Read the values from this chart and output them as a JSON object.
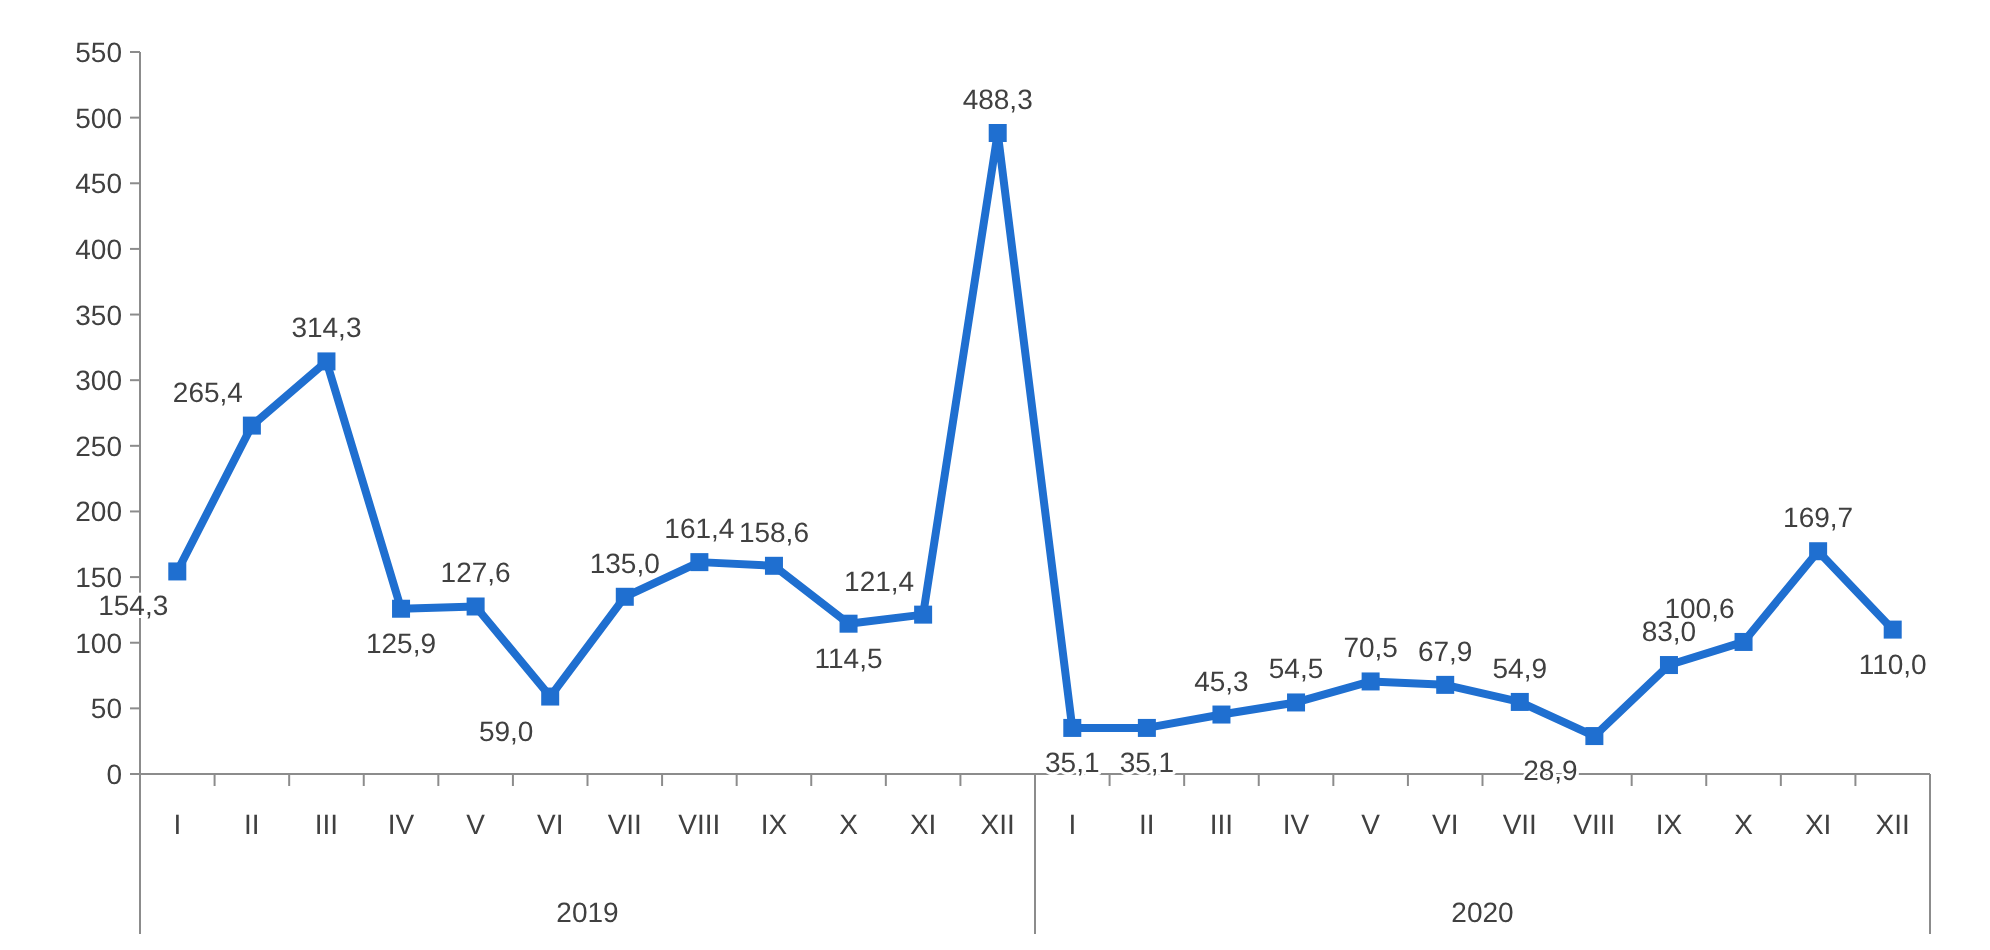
{
  "chart_data": {
    "type": "line",
    "categories": [
      "I",
      "II",
      "III",
      "IV",
      "V",
      "VI",
      "VII",
      "VIII",
      "IX",
      "X",
      "XI",
      "XII",
      "I",
      "II",
      "III",
      "IV",
      "V",
      "VI",
      "VII",
      "VIII",
      "IX",
      "X",
      "XI",
      "XII"
    ],
    "series": [
      {
        "color": "#1f6fd0",
        "values": [
          154.3,
          265.4,
          314.3,
          125.9,
          127.6,
          59.0,
          135.0,
          161.4,
          158.6,
          114.5,
          121.4,
          488.3,
          35.1,
          35.1,
          45.3,
          54.5,
          70.5,
          67.9,
          54.9,
          28.9,
          83.0,
          100.6,
          169.7,
          110.0
        ],
        "value_labels": [
          "154,3",
          "265,4",
          "314,3",
          "125,9",
          "127,6",
          "59,0",
          "135,0",
          "161,4",
          "158,6",
          "114,5",
          "121,4",
          "488,3",
          "35,1",
          "35,1",
          "45,3",
          "54,5",
          "70,5",
          "67,9",
          "54,9",
          "28,9",
          "83,0",
          "100,6",
          "169,7",
          "110,0"
        ]
      }
    ],
    "ylim": [
      0,
      550
    ],
    "yticks": [
      0,
      50,
      100,
      150,
      200,
      250,
      300,
      350,
      400,
      450,
      500,
      550
    ],
    "marker": "square",
    "line_style": "solid",
    "annotations": [
      "2019",
      "2020"
    ]
  }
}
